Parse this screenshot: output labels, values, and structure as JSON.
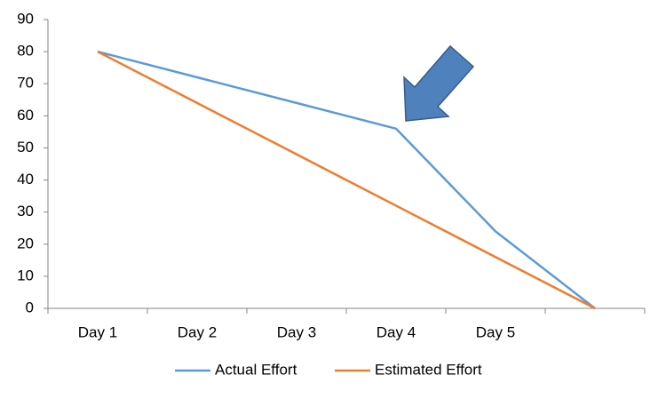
{
  "chart_data": {
    "type": "line",
    "categories": [
      "Day 1",
      "Day 2",
      "Day 3",
      "Day 4",
      "Day 5",
      null
    ],
    "series": [
      {
        "name": "Actual Effort",
        "color": "#5b9bd5",
        "values": [
          80,
          72,
          64,
          56,
          24,
          0
        ]
      },
      {
        "name": "Estimated Effort",
        "color": "#ed7d31",
        "values": [
          80,
          64,
          48,
          32,
          16,
          0
        ]
      }
    ],
    "ylim": [
      0,
      90
    ],
    "yticks": [
      0,
      10,
      20,
      30,
      40,
      50,
      60,
      70,
      80,
      90
    ],
    "grid": false,
    "legend": "bottom"
  }
}
